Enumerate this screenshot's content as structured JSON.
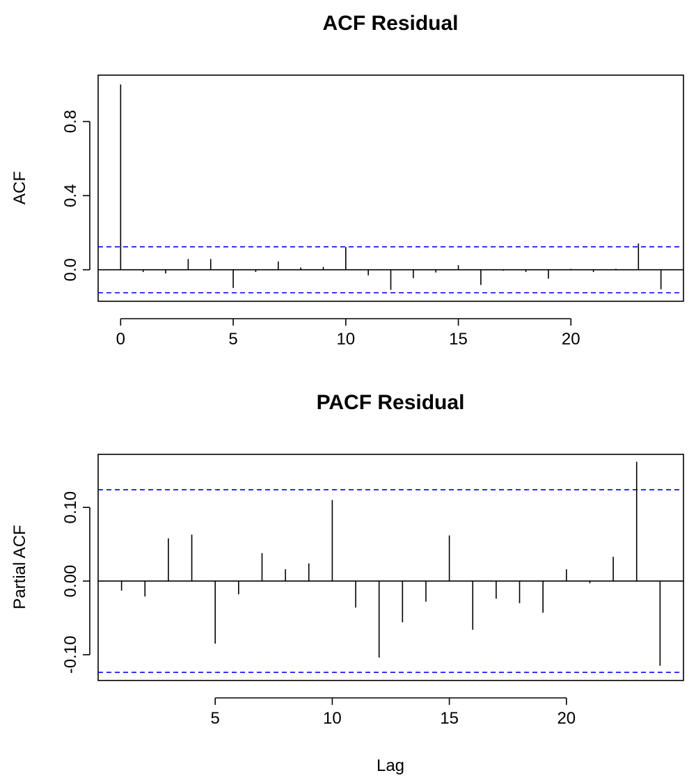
{
  "chart_data": [
    {
      "type": "bar",
      "title": "ACF Residual",
      "xlabel": "",
      "ylabel": "ACF",
      "x_ticks": [
        0,
        5,
        10,
        15,
        20
      ],
      "y_ticks": [
        "0.0",
        "0.4",
        "0.8"
      ],
      "xlim": [
        -1,
        25
      ],
      "ylim": [
        -0.17,
        1.05
      ],
      "confidence_band": 0.124,
      "band_color": "#0000ee",
      "grid": false,
      "lags": [
        0,
        1,
        2,
        3,
        4,
        5,
        6,
        7,
        8,
        9,
        10,
        11,
        12,
        13,
        14,
        15,
        16,
        17,
        18,
        19,
        20,
        21,
        22,
        23,
        24
      ],
      "values": [
        1.0,
        -0.012,
        -0.02,
        0.058,
        0.058,
        -0.098,
        -0.012,
        0.045,
        0.012,
        0.015,
        0.122,
        -0.03,
        -0.108,
        -0.045,
        -0.015,
        0.025,
        -0.082,
        -0.005,
        -0.012,
        -0.048,
        0.005,
        -0.012,
        0.005,
        0.142,
        -0.105
      ]
    },
    {
      "type": "bar",
      "title": "PACF Residual",
      "xlabel": "Lag",
      "ylabel": "Partial ACF",
      "x_ticks": [
        5,
        10,
        15,
        20
      ],
      "y_ticks": [
        "-0.10",
        "0.00",
        "0.10"
      ],
      "xlim": [
        0,
        25
      ],
      "ylim": [
        -0.135,
        0.172
      ],
      "confidence_band": 0.124,
      "band_color": "#0000ee",
      "grid": false,
      "lags": [
        1,
        2,
        3,
        4,
        5,
        6,
        7,
        8,
        9,
        10,
        11,
        12,
        13,
        14,
        15,
        16,
        17,
        18,
        19,
        20,
        21,
        22,
        23,
        24
      ],
      "values": [
        -0.013,
        -0.021,
        0.058,
        0.063,
        -0.085,
        -0.018,
        0.038,
        0.016,
        0.024,
        0.11,
        -0.036,
        -0.104,
        -0.056,
        -0.028,
        0.062,
        -0.066,
        -0.024,
        -0.03,
        -0.043,
        0.016,
        -0.003,
        0.033,
        0.162,
        -0.115
      ]
    }
  ]
}
